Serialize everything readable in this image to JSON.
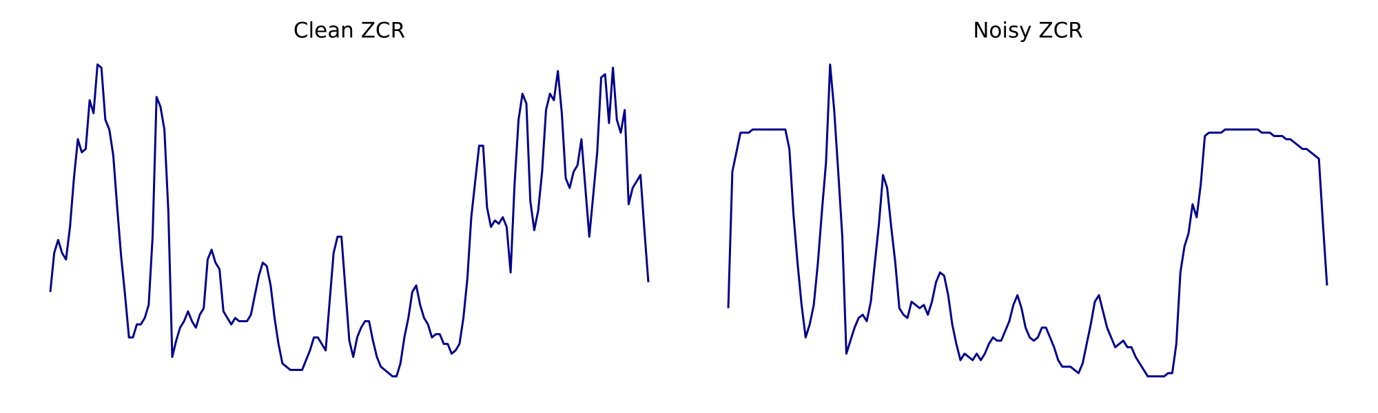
{
  "chart_data": [
    {
      "type": "line",
      "title": "Clean ZCR",
      "color": "#00008b",
      "ylim": [
        0,
        1
      ],
      "values": [
        0.29,
        0.41,
        0.45,
        0.41,
        0.39,
        0.49,
        0.64,
        0.76,
        0.72,
        0.73,
        0.88,
        0.84,
        0.99,
        0.98,
        0.82,
        0.79,
        0.71,
        0.55,
        0.4,
        0.28,
        0.15,
        0.15,
        0.19,
        0.19,
        0.21,
        0.25,
        0.46,
        0.89,
        0.86,
        0.79,
        0.54,
        0.09,
        0.14,
        0.18,
        0.2,
        0.23,
        0.2,
        0.18,
        0.22,
        0.24,
        0.39,
        0.42,
        0.38,
        0.36,
        0.23,
        0.21,
        0.19,
        0.21,
        0.2,
        0.2,
        0.2,
        0.22,
        0.28,
        0.34,
        0.38,
        0.37,
        0.31,
        0.21,
        0.13,
        0.07,
        0.06,
        0.05,
        0.05,
        0.05,
        0.05,
        0.08,
        0.11,
        0.15,
        0.15,
        0.13,
        0.11,
        0.26,
        0.41,
        0.46,
        0.46,
        0.3,
        0.14,
        0.09,
        0.15,
        0.18,
        0.2,
        0.2,
        0.14,
        0.09,
        0.06,
        0.05,
        0.04,
        0.03,
        0.03,
        0.07,
        0.15,
        0.21,
        0.29,
        0.31,
        0.25,
        0.21,
        0.19,
        0.15,
        0.16,
        0.16,
        0.13,
        0.13,
        0.1,
        0.11,
        0.13,
        0.21,
        0.33,
        0.52,
        0.63,
        0.74,
        0.74,
        0.55,
        0.49,
        0.51,
        0.5,
        0.52,
        0.49,
        0.35,
        0.62,
        0.82,
        0.9,
        0.87,
        0.57,
        0.48,
        0.54,
        0.66,
        0.85,
        0.9,
        0.88,
        0.97,
        0.84,
        0.64,
        0.61,
        0.66,
        0.68,
        0.76,
        0.61,
        0.46,
        0.59,
        0.72,
        0.95,
        0.96,
        0.81,
        0.98,
        0.82,
        0.78,
        0.85,
        0.56,
        0.61,
        0.63,
        0.65,
        0.48,
        0.32
      ]
    },
    {
      "type": "line",
      "title": "Noisy ZCR",
      "color": "#00008b",
      "ylim": [
        0,
        1
      ],
      "values": [
        0.24,
        0.66,
        0.72,
        0.78,
        0.78,
        0.78,
        0.79,
        0.79,
        0.79,
        0.79,
        0.79,
        0.79,
        0.79,
        0.79,
        0.79,
        0.73,
        0.53,
        0.38,
        0.25,
        0.15,
        0.19,
        0.25,
        0.38,
        0.54,
        0.69,
        0.99,
        0.85,
        0.66,
        0.46,
        0.1,
        0.14,
        0.18,
        0.21,
        0.22,
        0.2,
        0.26,
        0.38,
        0.5,
        0.65,
        0.61,
        0.49,
        0.38,
        0.24,
        0.22,
        0.21,
        0.26,
        0.25,
        0.24,
        0.25,
        0.22,
        0.26,
        0.32,
        0.35,
        0.34,
        0.28,
        0.19,
        0.13,
        0.08,
        0.1,
        0.09,
        0.08,
        0.1,
        0.08,
        0.1,
        0.13,
        0.15,
        0.14,
        0.14,
        0.17,
        0.2,
        0.25,
        0.28,
        0.24,
        0.18,
        0.15,
        0.14,
        0.15,
        0.18,
        0.18,
        0.15,
        0.12,
        0.08,
        0.06,
        0.06,
        0.06,
        0.05,
        0.04,
        0.07,
        0.13,
        0.19,
        0.26,
        0.28,
        0.23,
        0.18,
        0.15,
        0.12,
        0.13,
        0.14,
        0.12,
        0.12,
        0.09,
        0.07,
        0.05,
        0.03,
        0.03,
        0.03,
        0.03,
        0.03,
        0.04,
        0.04,
        0.13,
        0.35,
        0.43,
        0.47,
        0.56,
        0.52,
        0.62,
        0.77,
        0.78,
        0.78,
        0.78,
        0.78,
        0.79,
        0.79,
        0.79,
        0.79,
        0.79,
        0.79,
        0.79,
        0.79,
        0.79,
        0.78,
        0.78,
        0.78,
        0.77,
        0.77,
        0.77,
        0.76,
        0.76,
        0.75,
        0.74,
        0.73,
        0.73,
        0.72,
        0.71,
        0.7,
        0.5,
        0.31
      ]
    }
  ]
}
